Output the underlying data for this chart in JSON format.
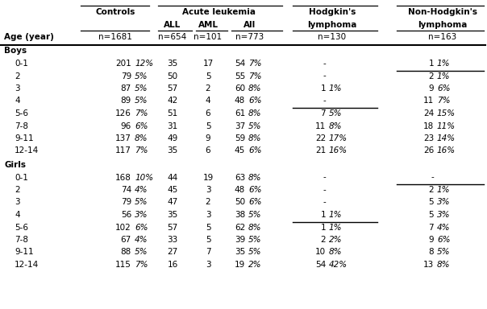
{
  "boys_data": [
    [
      "0-1",
      "201",
      "12%",
      "35",
      "17",
      "54",
      "7%",
      "-",
      "",
      "1",
      "1%"
    ],
    [
      "2",
      "79",
      "5%",
      "50",
      "5",
      "55",
      "7%",
      "-",
      "",
      "2",
      "1%"
    ],
    [
      "3",
      "87",
      "5%",
      "57",
      "2",
      "60",
      "8%",
      "1",
      "1%",
      "9",
      "6%"
    ],
    [
      "4",
      "89",
      "5%",
      "42",
      "4",
      "48",
      "6%",
      "-",
      "",
      "11",
      "7%"
    ],
    [
      "5-6",
      "126",
      "7%",
      "51",
      "6",
      "61",
      "8%",
      "7",
      "5%",
      "24",
      "15%"
    ],
    [
      "7-8",
      "96",
      "6%",
      "31",
      "5",
      "37",
      "5%",
      "11",
      "8%",
      "18",
      "11%"
    ],
    [
      "9-11",
      "137",
      "8%",
      "49",
      "9",
      "59",
      "8%",
      "22",
      "17%",
      "23",
      "14%"
    ],
    [
      "12-14",
      "117",
      "7%",
      "35",
      "6",
      "45",
      "6%",
      "21",
      "16%",
      "26",
      "16%"
    ]
  ],
  "girls_data": [
    [
      "0-1",
      "168",
      "10%",
      "44",
      "19",
      "63",
      "8%",
      "-",
      "",
      "-",
      ""
    ],
    [
      "2",
      "74",
      "4%",
      "45",
      "3",
      "48",
      "6%",
      "-",
      "",
      "2",
      "1%"
    ],
    [
      "3",
      "79",
      "5%",
      "47",
      "2",
      "50",
      "6%",
      "-",
      "",
      "5",
      "3%"
    ],
    [
      "4",
      "56",
      "3%",
      "35",
      "3",
      "38",
      "5%",
      "1",
      "1%",
      "5",
      "3%"
    ],
    [
      "5-6",
      "102",
      "6%",
      "57",
      "5",
      "62",
      "8%",
      "1",
      "1%",
      "7",
      "4%"
    ],
    [
      "7-8",
      "67",
      "4%",
      "33",
      "5",
      "39",
      "5%",
      "2",
      "2%",
      "9",
      "6%"
    ],
    [
      "9-11",
      "88",
      "5%",
      "27",
      "7",
      "35",
      "5%",
      "10",
      "8%",
      "8",
      "5%"
    ],
    [
      "12-14",
      "115",
      "7%",
      "16",
      "3",
      "19",
      "2%",
      "54",
      "42%",
      "13",
      "8%"
    ]
  ]
}
